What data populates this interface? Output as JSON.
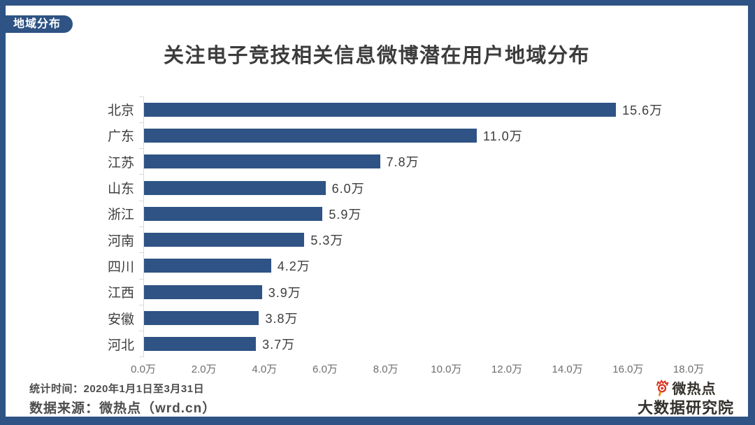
{
  "badge": {
    "label": "地域分布"
  },
  "chart_data": {
    "type": "bar",
    "orientation": "horizontal",
    "title": "关注电子竞技相关信息微博潜在用户地域分布",
    "categories": [
      "北京",
      "广东",
      "江苏",
      "山东",
      "浙江",
      "河南",
      "四川",
      "江西",
      "安徽",
      "河北"
    ],
    "values": [
      15.6,
      11.0,
      7.8,
      6.0,
      5.9,
      5.3,
      4.2,
      3.9,
      3.8,
      3.7
    ],
    "value_labels": [
      "15.6万",
      "11.0万",
      "7.8万",
      "6.0万",
      "5.9万",
      "5.3万",
      "4.2万",
      "3.9万",
      "3.8万",
      "3.7万"
    ],
    "unit": "万",
    "xlim": [
      0,
      18
    ],
    "x_ticks": [
      "0.0万",
      "2.0万",
      "4.0万",
      "6.0万",
      "8.0万",
      "10.0万",
      "12.0万",
      "14.0万",
      "16.0万",
      "18.0万"
    ],
    "bar_color": "#2E5384",
    "grid": false,
    "legend_position": "none"
  },
  "footer": {
    "stat_time": "统计时间：2020年1月1日至3月31日",
    "data_source": "数据来源：微热点（wrd.cn）"
  },
  "logo": {
    "brand": "微热点",
    "subtitle": "大数据研究院",
    "icon": "weibo-eye-icon",
    "icon_red": "#D9301E",
    "icon_orange": "#F08300"
  },
  "colors": {
    "frame": "#2E5384",
    "bar": "#2E5384",
    "axis_line": "#D9D9D9",
    "title_text": "#3C3C3C",
    "tick_text": "#6E6E6E",
    "footer_text": "#4D4D4D"
  }
}
